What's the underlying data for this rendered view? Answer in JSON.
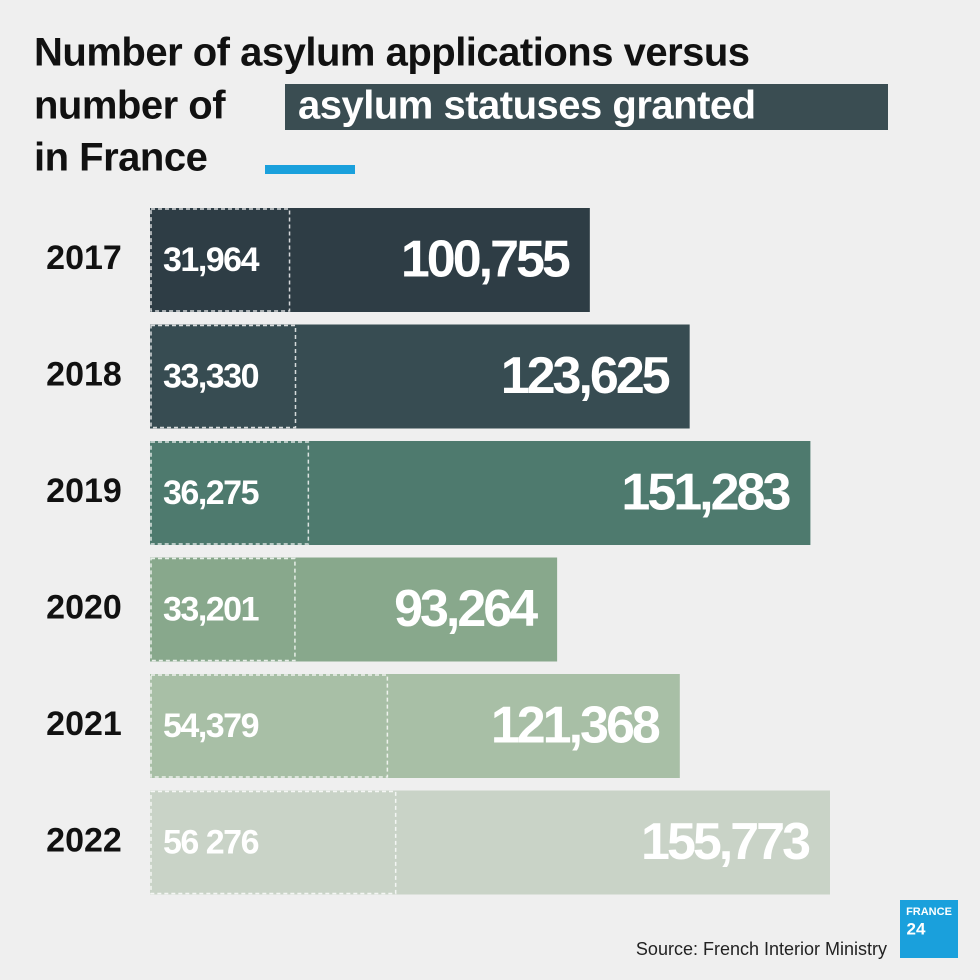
{
  "chart_data": {
    "type": "bar",
    "title": {
      "before": "Number of asylum applications versus",
      "middle": "number of",
      "highlight": "asylum statuses granted",
      "after": "in France"
    },
    "categories": [
      "2017",
      "2018",
      "2019",
      "2020",
      "2021",
      "2022"
    ],
    "colors": [
      "#2e3d45",
      "#374c52",
      "#4e7a6e",
      "#88a88c",
      "#a8bfa6",
      "#c9d3c7"
    ],
    "series": [
      {
        "values": [
          31964,
          33330,
          36275,
          33201,
          54379,
          56276
        ],
        "value_labels": [
          "31,964",
          "33,330",
          "36,275",
          "33,201",
          "54,379",
          "56 276"
        ]
      },
      {
        "values": [
          100755,
          123625,
          151283,
          93264,
          121368,
          155773
        ],
        "value_labels": [
          "100,755",
          "123,625",
          "151,283",
          "93,264",
          "121,368",
          "155,773"
        ]
      }
    ],
    "highlight_color": "#3a4d52",
    "legend_line_color": "#1aa0dc"
  },
  "source": "Source: French Interior Ministry",
  "logo": {
    "line1": "FRANCE",
    "line2": "24"
  }
}
